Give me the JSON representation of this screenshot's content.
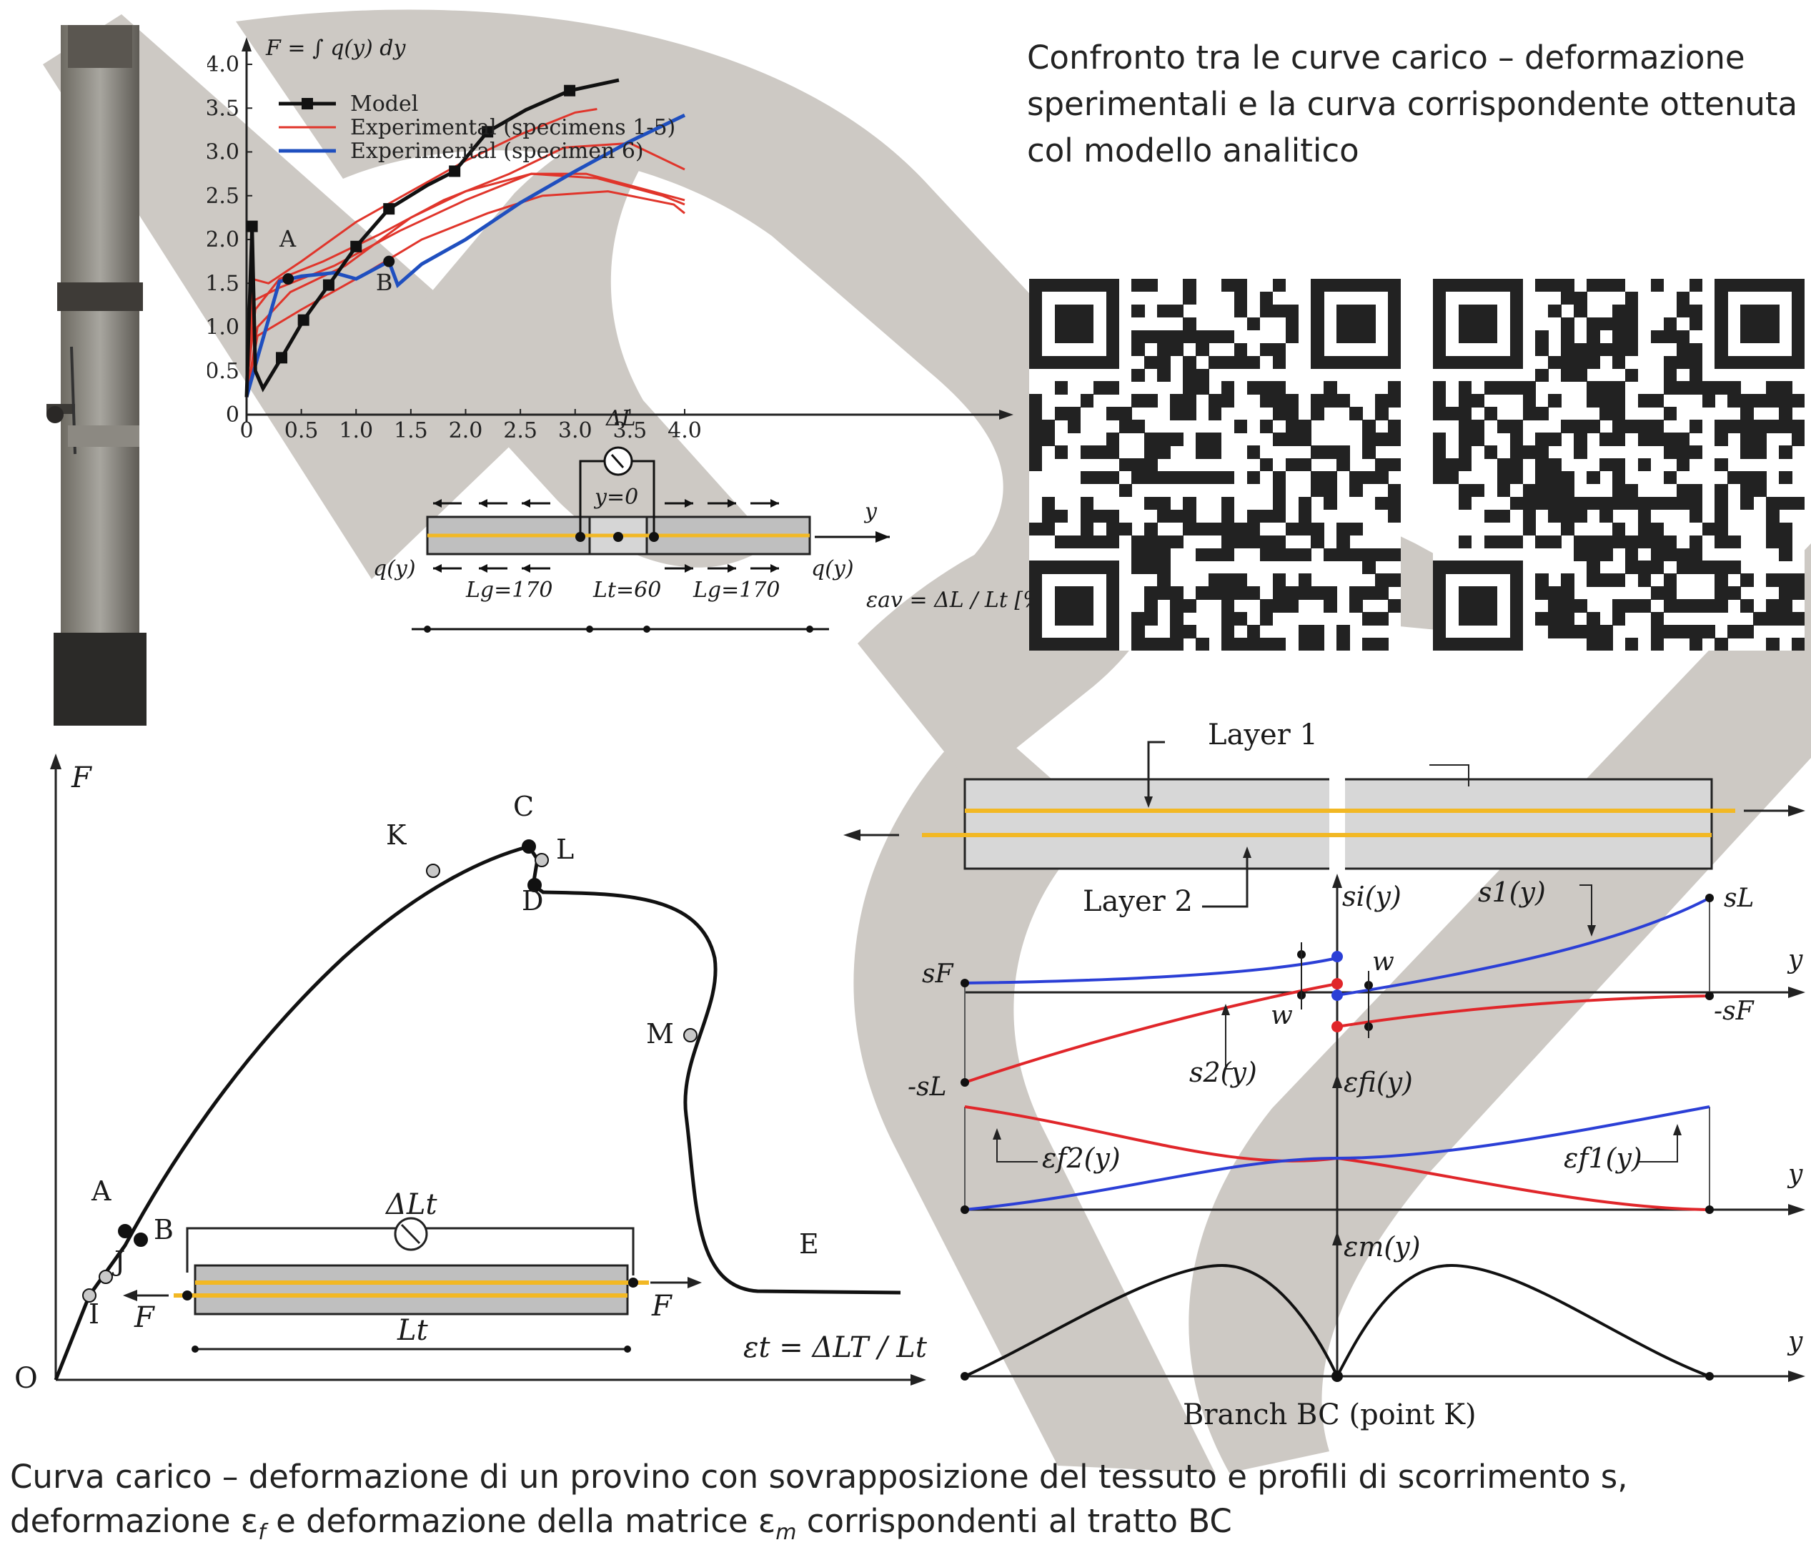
{
  "title": "Confronto tra le curve carico – deformazione sperimentali e la curva corrispondente ottenuta col modello analitico",
  "caption_line1": "Curva carico – deformazione di un provino con sovrapposizione del tessuto e profili di scorrimento s,",
  "caption_line2_a": "deformazione ε",
  "caption_line2_sub_f": "f",
  "caption_line2_b": " e deformazione della matrice ε",
  "caption_line2_sub_m": "m",
  "caption_line2_c": " corrispondenti al tratto BC",
  "colors": {
    "model": "#111111",
    "experimental_1_5": "#e0352b",
    "experimental_6": "#1f4fbf",
    "watermark": "#cdc9c4",
    "fiber": "#f2b824",
    "matrix": "#bdbdbd"
  },
  "chart_data": {
    "type": "line",
    "ylabel": "F = ∫ q(y) dy",
    "xlabel": "εav = ΔL / Lt [%]",
    "x_ticks": [
      "0",
      "0.5",
      "1.0",
      "1.5",
      "2.0",
      "2.5",
      "3.0",
      "3.5",
      "4.0"
    ],
    "y_ticks": [
      "0",
      "0.5",
      "1.0",
      "1.5",
      "2.0",
      "2.5",
      "3.0",
      "3.5",
      "4.0"
    ],
    "xlim": [
      0,
      4.0
    ],
    "ylim": [
      0,
      4.0
    ],
    "legend_placement": "top-left",
    "series": [
      {
        "name": "Model",
        "x": [
          0.0,
          0.05,
          0.08,
          0.15,
          0.32,
          0.52,
          0.75,
          1.0,
          1.3,
          1.65,
          1.9,
          2.2,
          2.55,
          2.95,
          3.4
        ],
        "y": [
          0.2,
          2.15,
          0.5,
          0.3,
          0.65,
          1.08,
          1.48,
          1.92,
          2.35,
          2.62,
          2.78,
          3.23,
          3.48,
          3.7,
          3.82
        ],
        "markers_x": [
          0.05,
          0.32,
          0.52,
          0.75,
          1.0,
          1.3,
          1.9,
          2.2,
          2.95
        ],
        "markers_y": [
          2.15,
          0.65,
          1.08,
          1.48,
          1.92,
          2.35,
          2.78,
          3.23,
          3.7
        ]
      },
      {
        "name": "Experimental (specimens 1-5)",
        "curves": [
          {
            "x": [
              0.0,
              0.05,
              0.2,
              0.5,
              1.0,
              1.5,
              2.0,
              2.5,
              3.0,
              3.2
            ],
            "y": [
              0.3,
              1.55,
              1.5,
              1.75,
              2.2,
              2.55,
              2.9,
              3.2,
              3.45,
              3.49
            ]
          },
          {
            "x": [
              0.0,
              0.08,
              0.3,
              0.7,
              1.2,
              1.8,
              2.4,
              2.9,
              3.5,
              4.0
            ],
            "y": [
              0.3,
              1.2,
              1.55,
              1.75,
              2.05,
              2.45,
              2.75,
              3.05,
              3.1,
              2.8
            ]
          },
          {
            "x": [
              0.0,
              0.1,
              0.4,
              0.9,
              1.5,
              2.0,
              2.6,
              3.2,
              3.8,
              4.0
            ],
            "y": [
              0.2,
              1.0,
              1.4,
              1.7,
              2.25,
              2.55,
              2.75,
              2.7,
              2.5,
              2.4
            ]
          },
          {
            "x": [
              0.0,
              0.1,
              0.5,
              1.0,
              1.6,
              2.2,
              2.7,
              3.3,
              3.9,
              4.0
            ],
            "y": [
              0.2,
              0.9,
              1.2,
              1.55,
              2.0,
              2.3,
              2.5,
              2.55,
              2.4,
              2.3
            ]
          },
          {
            "x": [
              0.0,
              0.06,
              0.3,
              0.8,
              1.4,
              2.0,
              2.6,
              3.1,
              3.7,
              4.0
            ],
            "y": [
              0.2,
              1.3,
              1.45,
              1.7,
              2.1,
              2.45,
              2.75,
              2.75,
              2.55,
              2.45
            ]
          }
        ]
      },
      {
        "name": "Experimental (specimen 6)",
        "x": [
          0.0,
          0.1,
          0.3,
          0.5,
          0.8,
          1.0,
          1.3,
          1.38,
          1.6,
          2.0,
          2.5,
          3.0,
          3.5,
          4.0
        ],
        "y": [
          0.2,
          0.65,
          1.52,
          1.58,
          1.62,
          1.55,
          1.75,
          1.48,
          1.72,
          2.0,
          2.42,
          2.78,
          3.12,
          3.42
        ]
      }
    ],
    "annotations": [
      "A",
      "B"
    ]
  },
  "top_inset": {
    "dL": "ΔL",
    "y0": "y=0",
    "y_axis": "y",
    "q_left": "q(y)",
    "q_right": "q(y)",
    "lg_left": "Lg=170",
    "lt": "Lt=60",
    "lg_right": "Lg=170"
  },
  "bottom_left": {
    "axis_F": "F",
    "origin": "O",
    "x_axis_label": "εt = ΔLT / Lt",
    "points": [
      "A",
      "B",
      "C",
      "D",
      "E",
      "I",
      "J",
      "K",
      "L",
      "M"
    ],
    "dLt": "ΔLt",
    "F_left": "F",
    "F_right": "F",
    "Lt": "Lt"
  },
  "bottom_right": {
    "layer1": "Layer 1",
    "layer2": "Layer 2",
    "si": "si(y)",
    "s1": "s1(y)",
    "s2": "s2(y)",
    "sL": "sL",
    "sF": "sF",
    "minus_sF": "-sF",
    "minus_sL": "-sL",
    "w_top": "w",
    "w_left": "w",
    "y": "y",
    "efi": "εfi(y)",
    "ef1": "εf1(y)",
    "ef2": "εf2(y)",
    "em": "εm(y)",
    "branch": "Branch BC (point K)"
  },
  "qr_codes": [
    "qr-code-left",
    "qr-code-right"
  ]
}
